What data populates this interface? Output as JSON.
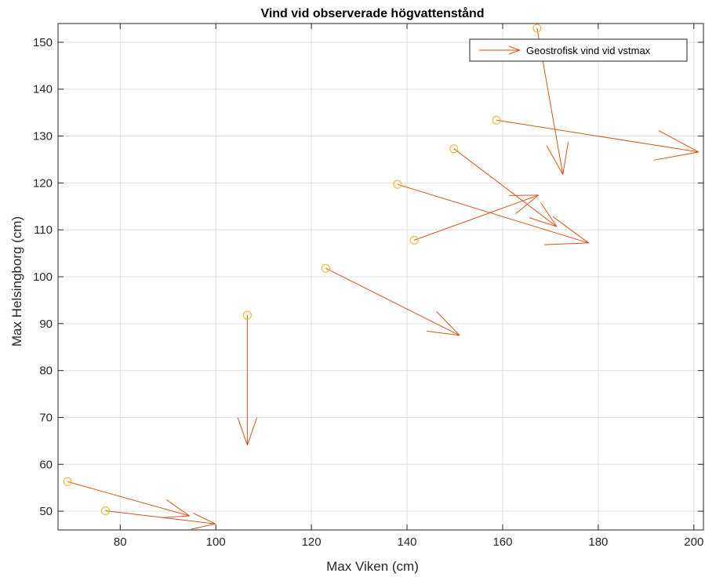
{
  "chart_data": {
    "type": "quiver",
    "title": "Vind vid observerade högvattenstånd",
    "xlabel": "Max Viken (cm)",
    "ylabel": "Max Helsingborg (cm)",
    "xlim": [
      67,
      202
    ],
    "ylim": [
      46,
      154
    ],
    "xticks": [
      80,
      100,
      120,
      140,
      160,
      180,
      200
    ],
    "yticks": [
      50,
      60,
      70,
      80,
      90,
      100,
      110,
      120,
      130,
      140,
      150
    ],
    "grid": true,
    "legend": {
      "position": "top-right",
      "entries": [
        "Geostrofisk vind vid vstmax"
      ]
    },
    "marker_color": "#EDB120",
    "arrow_color": "#D95319",
    "series": [
      {
        "name": "Geostrofisk vind vid vstmax",
        "points": [
          {
            "x": 69.0,
            "y": 56.3,
            "u": 25.5,
            "v": -7.3
          },
          {
            "x": 76.9,
            "y": 50.1,
            "u": 23.0,
            "v": -2.8
          },
          {
            "x": 106.6,
            "y": 91.8,
            "u": 0.0,
            "v": -27.7
          },
          {
            "x": 123.0,
            "y": 101.8,
            "u": 28.0,
            "v": -14.3
          },
          {
            "x": 138.0,
            "y": 119.7,
            "u": 40.0,
            "v": -12.5
          },
          {
            "x": 141.5,
            "y": 107.8,
            "u": 26.0,
            "v": 9.6
          },
          {
            "x": 149.8,
            "y": 127.3,
            "u": 21.5,
            "v": -16.6
          },
          {
            "x": 158.7,
            "y": 133.4,
            "u": 42.3,
            "v": -6.8
          },
          {
            "x": 167.2,
            "y": 153.0,
            "u": 5.4,
            "v": -31.2
          }
        ]
      }
    ]
  }
}
